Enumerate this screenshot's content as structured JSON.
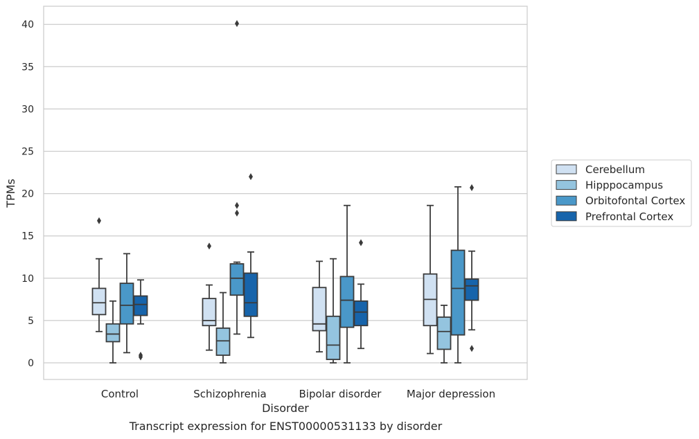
{
  "chart_data": {
    "type": "box",
    "title": "",
    "caption": "Transcript expression for ENST00000531133 by disorder",
    "xlabel": "Disorder",
    "ylabel": "TPMs",
    "ylim": [
      -1.8,
      42.2
    ],
    "yticks": [
      0,
      5,
      10,
      15,
      20,
      25,
      30,
      35,
      40
    ],
    "grid": true,
    "legend_position": "right",
    "categories": [
      "Control",
      "Schizophrenia",
      "Bipolar disorder",
      "Major depression"
    ],
    "series": [
      {
        "name": "Cerebellum",
        "color": "#d0e1f2",
        "boxes": [
          {
            "whislo": 3.7,
            "q1": 5.7,
            "med": 7.1,
            "q3": 8.8,
            "whishi": 12.3,
            "fliers": [
              16.8
            ]
          },
          {
            "whislo": 1.5,
            "q1": 4.4,
            "med": 5.0,
            "q3": 7.6,
            "whishi": 9.2,
            "fliers": [
              13.8
            ]
          },
          {
            "whislo": 1.3,
            "q1": 3.8,
            "med": 4.6,
            "q3": 8.9,
            "whishi": 12.0,
            "fliers": []
          },
          {
            "whislo": 1.1,
            "q1": 4.4,
            "med": 7.5,
            "q3": 10.5,
            "whishi": 18.6,
            "fliers": []
          }
        ]
      },
      {
        "name": "Hipppocampus",
        "color": "#94c4df",
        "boxes": [
          {
            "whislo": 0.0,
            "q1": 2.5,
            "med": 3.4,
            "q3": 4.6,
            "whishi": 7.3,
            "fliers": []
          },
          {
            "whislo": 0.0,
            "q1": 0.9,
            "med": 2.6,
            "q3": 4.1,
            "whishi": 8.3,
            "fliers": []
          },
          {
            "whislo": 0.0,
            "q1": 0.4,
            "med": 2.1,
            "q3": 5.5,
            "whishi": 12.3,
            "fliers": []
          },
          {
            "whislo": 0.0,
            "q1": 1.6,
            "med": 3.7,
            "q3": 5.4,
            "whishi": 6.8,
            "fliers": []
          }
        ]
      },
      {
        "name": "Orbitofontal Cortex",
        "color": "#4a98c9",
        "boxes": [
          {
            "whislo": 1.2,
            "q1": 4.6,
            "med": 6.8,
            "q3": 9.4,
            "whishi": 12.9,
            "fliers": []
          },
          {
            "whislo": 3.4,
            "q1": 8.0,
            "med": 10.0,
            "q3": 11.7,
            "whishi": 11.9,
            "fliers": [
              17.7,
              18.6,
              40.1
            ]
          },
          {
            "whislo": 0.0,
            "q1": 4.2,
            "med": 7.4,
            "q3": 10.2,
            "whishi": 18.6,
            "fliers": []
          },
          {
            "whislo": 0.0,
            "q1": 3.3,
            "med": 8.8,
            "q3": 13.3,
            "whishi": 20.8,
            "fliers": []
          }
        ]
      },
      {
        "name": "Prefrontal Cortex",
        "color": "#1764ab",
        "boxes": [
          {
            "whislo": 4.6,
            "q1": 5.6,
            "med": 6.9,
            "q3": 7.9,
            "whishi": 9.8,
            "fliers": [
              0.7,
              0.9
            ]
          },
          {
            "whislo": 3.0,
            "q1": 5.5,
            "med": 7.1,
            "q3": 10.6,
            "whishi": 13.1,
            "fliers": [
              22.0
            ]
          },
          {
            "whislo": 1.7,
            "q1": 4.4,
            "med": 6.0,
            "q3": 7.3,
            "whishi": 9.3,
            "fliers": [
              14.2
            ]
          },
          {
            "whislo": 3.9,
            "q1": 7.4,
            "med": 9.1,
            "q3": 9.9,
            "whishi": 13.2,
            "fliers": [
              1.7,
              20.7
            ]
          }
        ]
      }
    ]
  }
}
